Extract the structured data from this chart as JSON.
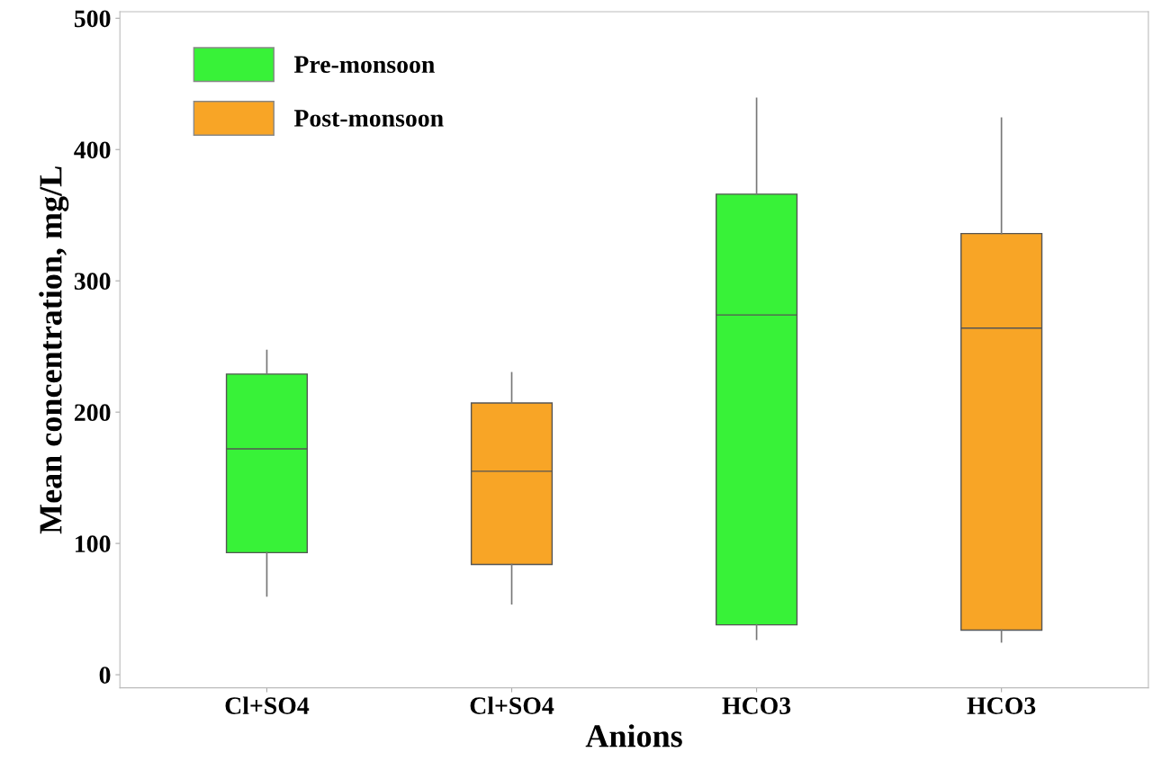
{
  "chart_data": {
    "type": "box",
    "xlabel": "Anions",
    "ylabel": "Mean concentration, mg/L",
    "categories": [
      "Cl+SO4",
      "Cl+SO4",
      "HCO3",
      "HCO3"
    ],
    "series": [
      {
        "name": "Pre-monsoon",
        "color": "#38f238",
        "boxes": [
          {
            "low": 60,
            "q1": 93,
            "median": 172,
            "q3": 229,
            "high": 247
          },
          null,
          {
            "low": 27,
            "q1": 38,
            "median": 274,
            "q3": 366,
            "high": 439
          },
          null
        ]
      },
      {
        "name": "Post-monsoon",
        "color": "#f8a526",
        "boxes": [
          null,
          {
            "low": 54,
            "q1": 84,
            "median": 155,
            "q3": 207,
            "high": 230
          },
          null,
          {
            "low": 25,
            "q1": 34,
            "median": 264,
            "q3": 336,
            "high": 424
          }
        ]
      }
    ],
    "ylim": [
      -10,
      505
    ],
    "yticks": [
      0,
      100,
      200,
      300,
      400,
      500
    ],
    "grid": false,
    "legend": "top left"
  }
}
